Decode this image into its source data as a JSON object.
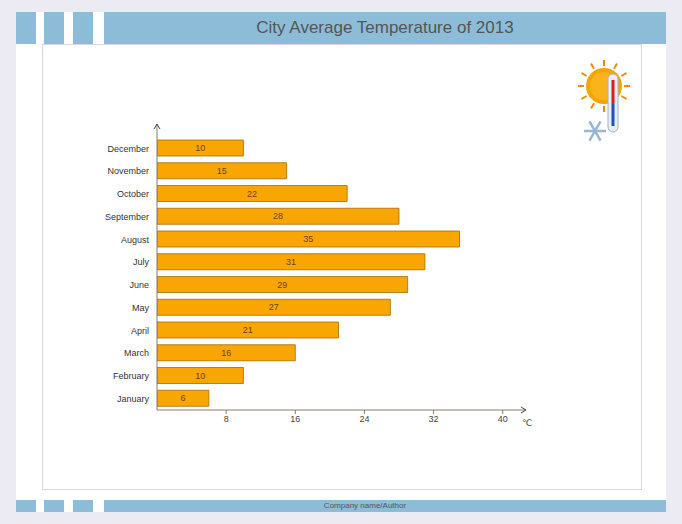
{
  "chart_data": {
    "type": "bar",
    "title": "City Average Temperature of 2013",
    "footer": "Company name/Author",
    "orientation": "horizontal",
    "categories": [
      "January",
      "February",
      "March",
      "April",
      "May",
      "June",
      "July",
      "August",
      "September",
      "October",
      "November",
      "December"
    ],
    "values": [
      6,
      10,
      16,
      21,
      27,
      29,
      31,
      35,
      28,
      22,
      15,
      10
    ],
    "color": "#F9A602",
    "x_label": "℃",
    "xlim": [
      0,
      42
    ],
    "xticks": [
      8,
      16,
      24,
      32,
      40
    ],
    "data_labels": true,
    "grid": false
  }
}
